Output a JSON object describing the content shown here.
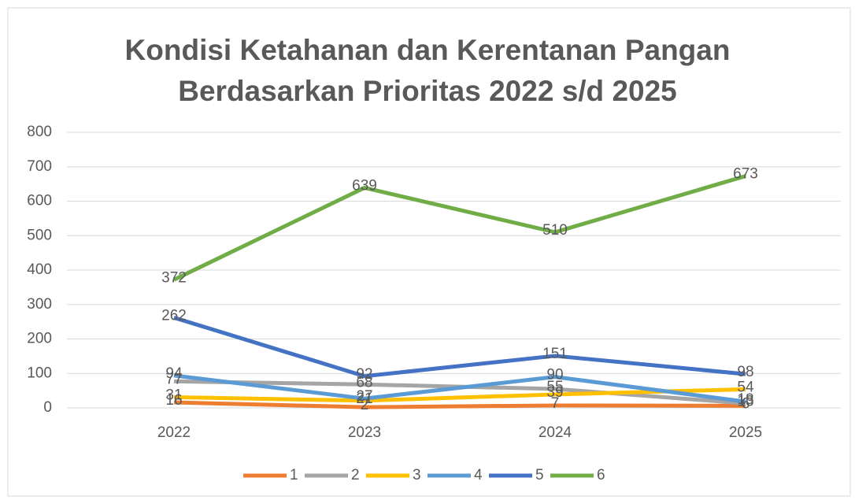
{
  "chart_data": {
    "type": "line",
    "title": "Kondisi Ketahanan dan Kerentanan Pangan Berdasarkan Prioritas 2022 s/d 2025",
    "categories": [
      "2022",
      "2023",
      "2024",
      "2025"
    ],
    "series": [
      {
        "name": "1",
        "color": "#ED7D31",
        "values": [
          16,
          2,
          7,
          6
        ]
      },
      {
        "name": "2",
        "color": "#A5A5A5",
        "values": [
          77,
          68,
          55,
          13
        ]
      },
      {
        "name": "3",
        "color": "#FFC000",
        "values": [
          31,
          21,
          39,
          54
        ]
      },
      {
        "name": "4",
        "color": "#5B9BD5",
        "values": [
          94,
          27,
          90,
          18
        ]
      },
      {
        "name": "5",
        "color": "#4472C4",
        "values": [
          262,
          92,
          151,
          98
        ]
      },
      {
        "name": "6",
        "color": "#70AD47",
        "values": [
          372,
          639,
          510,
          673
        ]
      }
    ],
    "ylim": [
      0,
      800
    ],
    "yticks": [
      0,
      100,
      200,
      300,
      400,
      500,
      600,
      700,
      800
    ],
    "grid": true,
    "legend": "bottom"
  }
}
